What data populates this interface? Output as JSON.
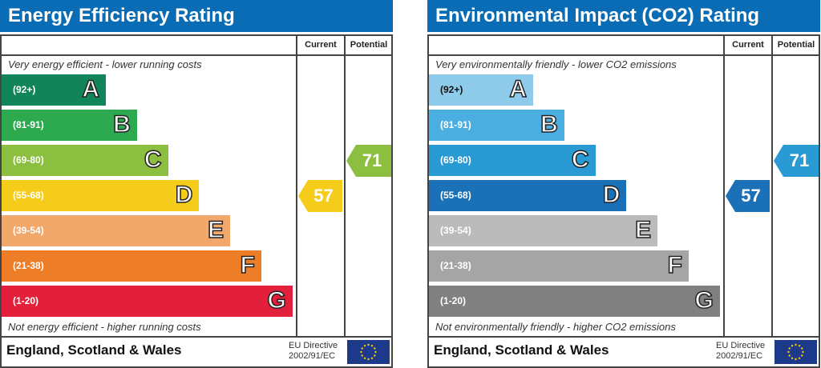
{
  "chart_data": [
    {
      "type": "bar",
      "title": "Energy Efficiency Rating",
      "columns": [
        "Current",
        "Potential"
      ],
      "top_note": "Very energy efficient - lower running costs",
      "bottom_note": "Not energy efficient - higher running costs",
      "bands": [
        {
          "range": "(92+)",
          "letter": "A",
          "color": "#11845a"
        },
        {
          "range": "(81-91)",
          "letter": "B",
          "color": "#2daa50"
        },
        {
          "range": "(69-80)",
          "letter": "C",
          "color": "#8cbe3f"
        },
        {
          "range": "(55-68)",
          "letter": "D",
          "color": "#f5cc1a"
        },
        {
          "range": "(39-54)",
          "letter": "E",
          "color": "#f2a86b"
        },
        {
          "range": "(21-38)",
          "letter": "F",
          "color": "#ee7d27"
        },
        {
          "range": "(1-20)",
          "letter": "G",
          "color": "#e2203c"
        }
      ],
      "current": {
        "value": "57",
        "band": "D",
        "color": "#f5cc1a"
      },
      "potential": {
        "value": "71",
        "band": "C",
        "color": "#8cbe3f"
      },
      "footer": "England, Scotland & Wales",
      "directive": [
        "EU Directive",
        "2002/91/EC"
      ]
    },
    {
      "type": "bar",
      "title": "Environmental Impact (CO2) Rating",
      "columns": [
        "Current",
        "Potential"
      ],
      "top_note": "Very environmentally friendly - lower CO2 emissions",
      "bottom_note": "Not environmentally friendly - higher CO2 emissions",
      "bands": [
        {
          "range": "(92+)",
          "letter": "A",
          "color": "#8ecbea",
          "dark": true
        },
        {
          "range": "(81-91)",
          "letter": "B",
          "color": "#4aaee0"
        },
        {
          "range": "(69-80)",
          "letter": "C",
          "color": "#2a9ad4"
        },
        {
          "range": "(55-68)",
          "letter": "D",
          "color": "#1a71b8"
        },
        {
          "range": "(39-54)",
          "letter": "E",
          "color": "#bbbbbb"
        },
        {
          "range": "(21-38)",
          "letter": "F",
          "color": "#a5a5a5"
        },
        {
          "range": "(1-20)",
          "letter": "G",
          "color": "#808080"
        }
      ],
      "current": {
        "value": "57",
        "band": "D",
        "color": "#1a71b8"
      },
      "potential": {
        "value": "71",
        "band": "C",
        "color": "#2a9ad4"
      },
      "footer": "England, Scotland & Wales",
      "directive": [
        "EU Directive",
        "2002/91/EC"
      ]
    }
  ]
}
